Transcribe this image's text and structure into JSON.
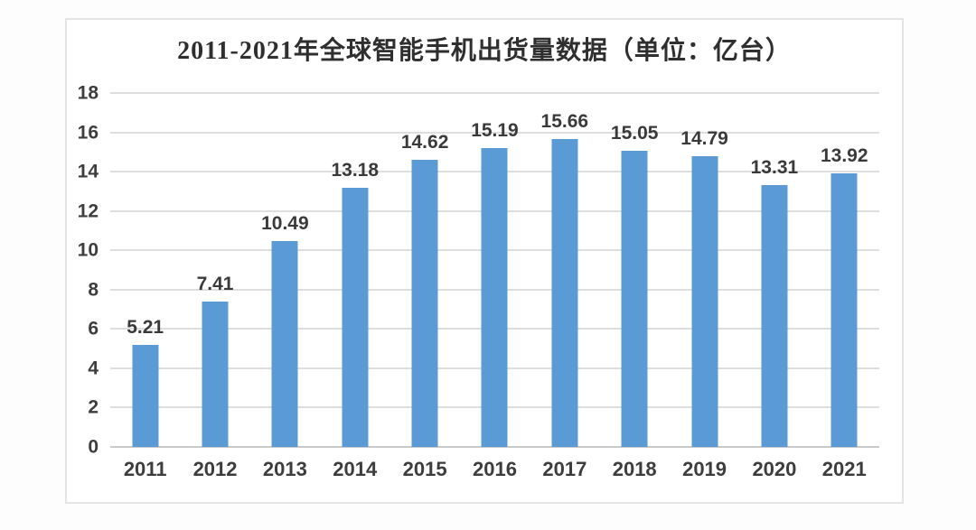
{
  "page": {
    "background_color": "#fdfdfd",
    "card_border_color": "#e4e4e4"
  },
  "chart_data": {
    "type": "bar",
    "title": "2011-2021年全球智能手机出货量数据（单位：亿台）",
    "categories": [
      "2011",
      "2012",
      "2013",
      "2014",
      "2015",
      "2016",
      "2017",
      "2018",
      "2019",
      "2020",
      "2021"
    ],
    "values": [
      5.21,
      7.41,
      10.49,
      13.18,
      14.62,
      15.19,
      15.66,
      15.05,
      14.79,
      13.31,
      13.92
    ],
    "value_labels": [
      "5.21",
      "7.41",
      "10.49",
      "13.18",
      "14.62",
      "15.19",
      "15.66",
      "15.05",
      "14.79",
      "13.31",
      "13.92"
    ],
    "xlabel": "",
    "ylabel": "",
    "ylim": [
      0,
      18
    ],
    "yticks": [
      0,
      2,
      4,
      6,
      8,
      10,
      12,
      14,
      16,
      18
    ],
    "grid": true,
    "legend_position": "none",
    "bar_color": "#5B9BD5",
    "gridline_color": "#dedede",
    "label_color": "#3d3d3d"
  }
}
